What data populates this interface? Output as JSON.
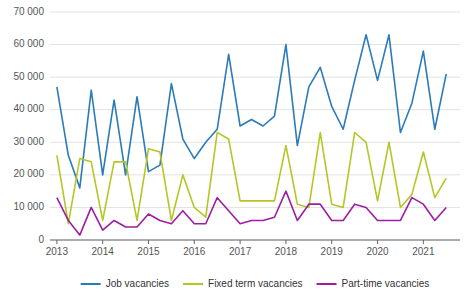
{
  "chart_data": {
    "type": "line",
    "x": [
      2013,
      2013.25,
      2013.5,
      2013.75,
      2014,
      2014.25,
      2014.5,
      2014.75,
      2015,
      2015.25,
      2015.5,
      2015.75,
      2016,
      2016.25,
      2016.5,
      2016.75,
      2017,
      2017.25,
      2017.5,
      2017.75,
      2018,
      2018.25,
      2018.5,
      2018.75,
      2019,
      2019.25,
      2019.5,
      2019.75,
      2020,
      2020.25,
      2020.5,
      2020.75,
      2021,
      2021.25,
      2021.5
    ],
    "series": [
      {
        "name": "Job vacancies",
        "color": "#2b7bba",
        "values": [
          47000,
          26000,
          16000,
          46000,
          20000,
          43000,
          20000,
          44000,
          21000,
          23000,
          48000,
          31000,
          25000,
          30000,
          34000,
          57000,
          35000,
          37000,
          35000,
          38000,
          60000,
          29000,
          47000,
          53000,
          41000,
          34000,
          49000,
          63000,
          49000,
          63000,
          33000,
          42000,
          58000,
          34000,
          51000
        ]
      },
      {
        "name": "Fixed term vacancies",
        "color": "#b5c625",
        "values": [
          26000,
          5000,
          25000,
          24000,
          6000,
          24000,
          24000,
          6000,
          28000,
          27000,
          6000,
          20000,
          10000,
          7000,
          33000,
          31000,
          12000,
          12000,
          12000,
          12000,
          29000,
          11000,
          10000,
          33000,
          11000,
          10000,
          33000,
          30000,
          12000,
          30000,
          10000,
          14000,
          27000,
          13000,
          19000
        ]
      },
      {
        "name": "Part-time vacancies",
        "color": "#9b1fa0",
        "values": [
          13000,
          6000,
          1500,
          10000,
          3000,
          6000,
          4000,
          4000,
          8000,
          6000,
          5000,
          9000,
          5000,
          5000,
          13000,
          9000,
          5000,
          6000,
          6000,
          7000,
          15000,
          6000,
          11000,
          11000,
          6000,
          6000,
          11000,
          10000,
          6000,
          6000,
          6000,
          13000,
          11000,
          6000,
          10000
        ]
      }
    ],
    "xlim": [
      2012.85,
      2021.8
    ],
    "xticks": [
      2013,
      2014,
      2015,
      2016,
      2017,
      2018,
      2019,
      2020,
      2021
    ],
    "ylim": [
      0,
      70000
    ],
    "yticks": [
      0,
      {
        "value": 10000,
        "label": "10 000"
      },
      {
        "value": 20000,
        "label": "20 000"
      },
      {
        "value": 30000,
        "label": "30 000"
      },
      {
        "value": 40000,
        "label": "40 000"
      },
      {
        "value": 50000,
        "label": "50 000"
      },
      {
        "value": 60000,
        "label": "60 000"
      },
      {
        "value": 70000,
        "label": "70 000"
      }
    ],
    "grid": true,
    "legend": "bottom"
  }
}
